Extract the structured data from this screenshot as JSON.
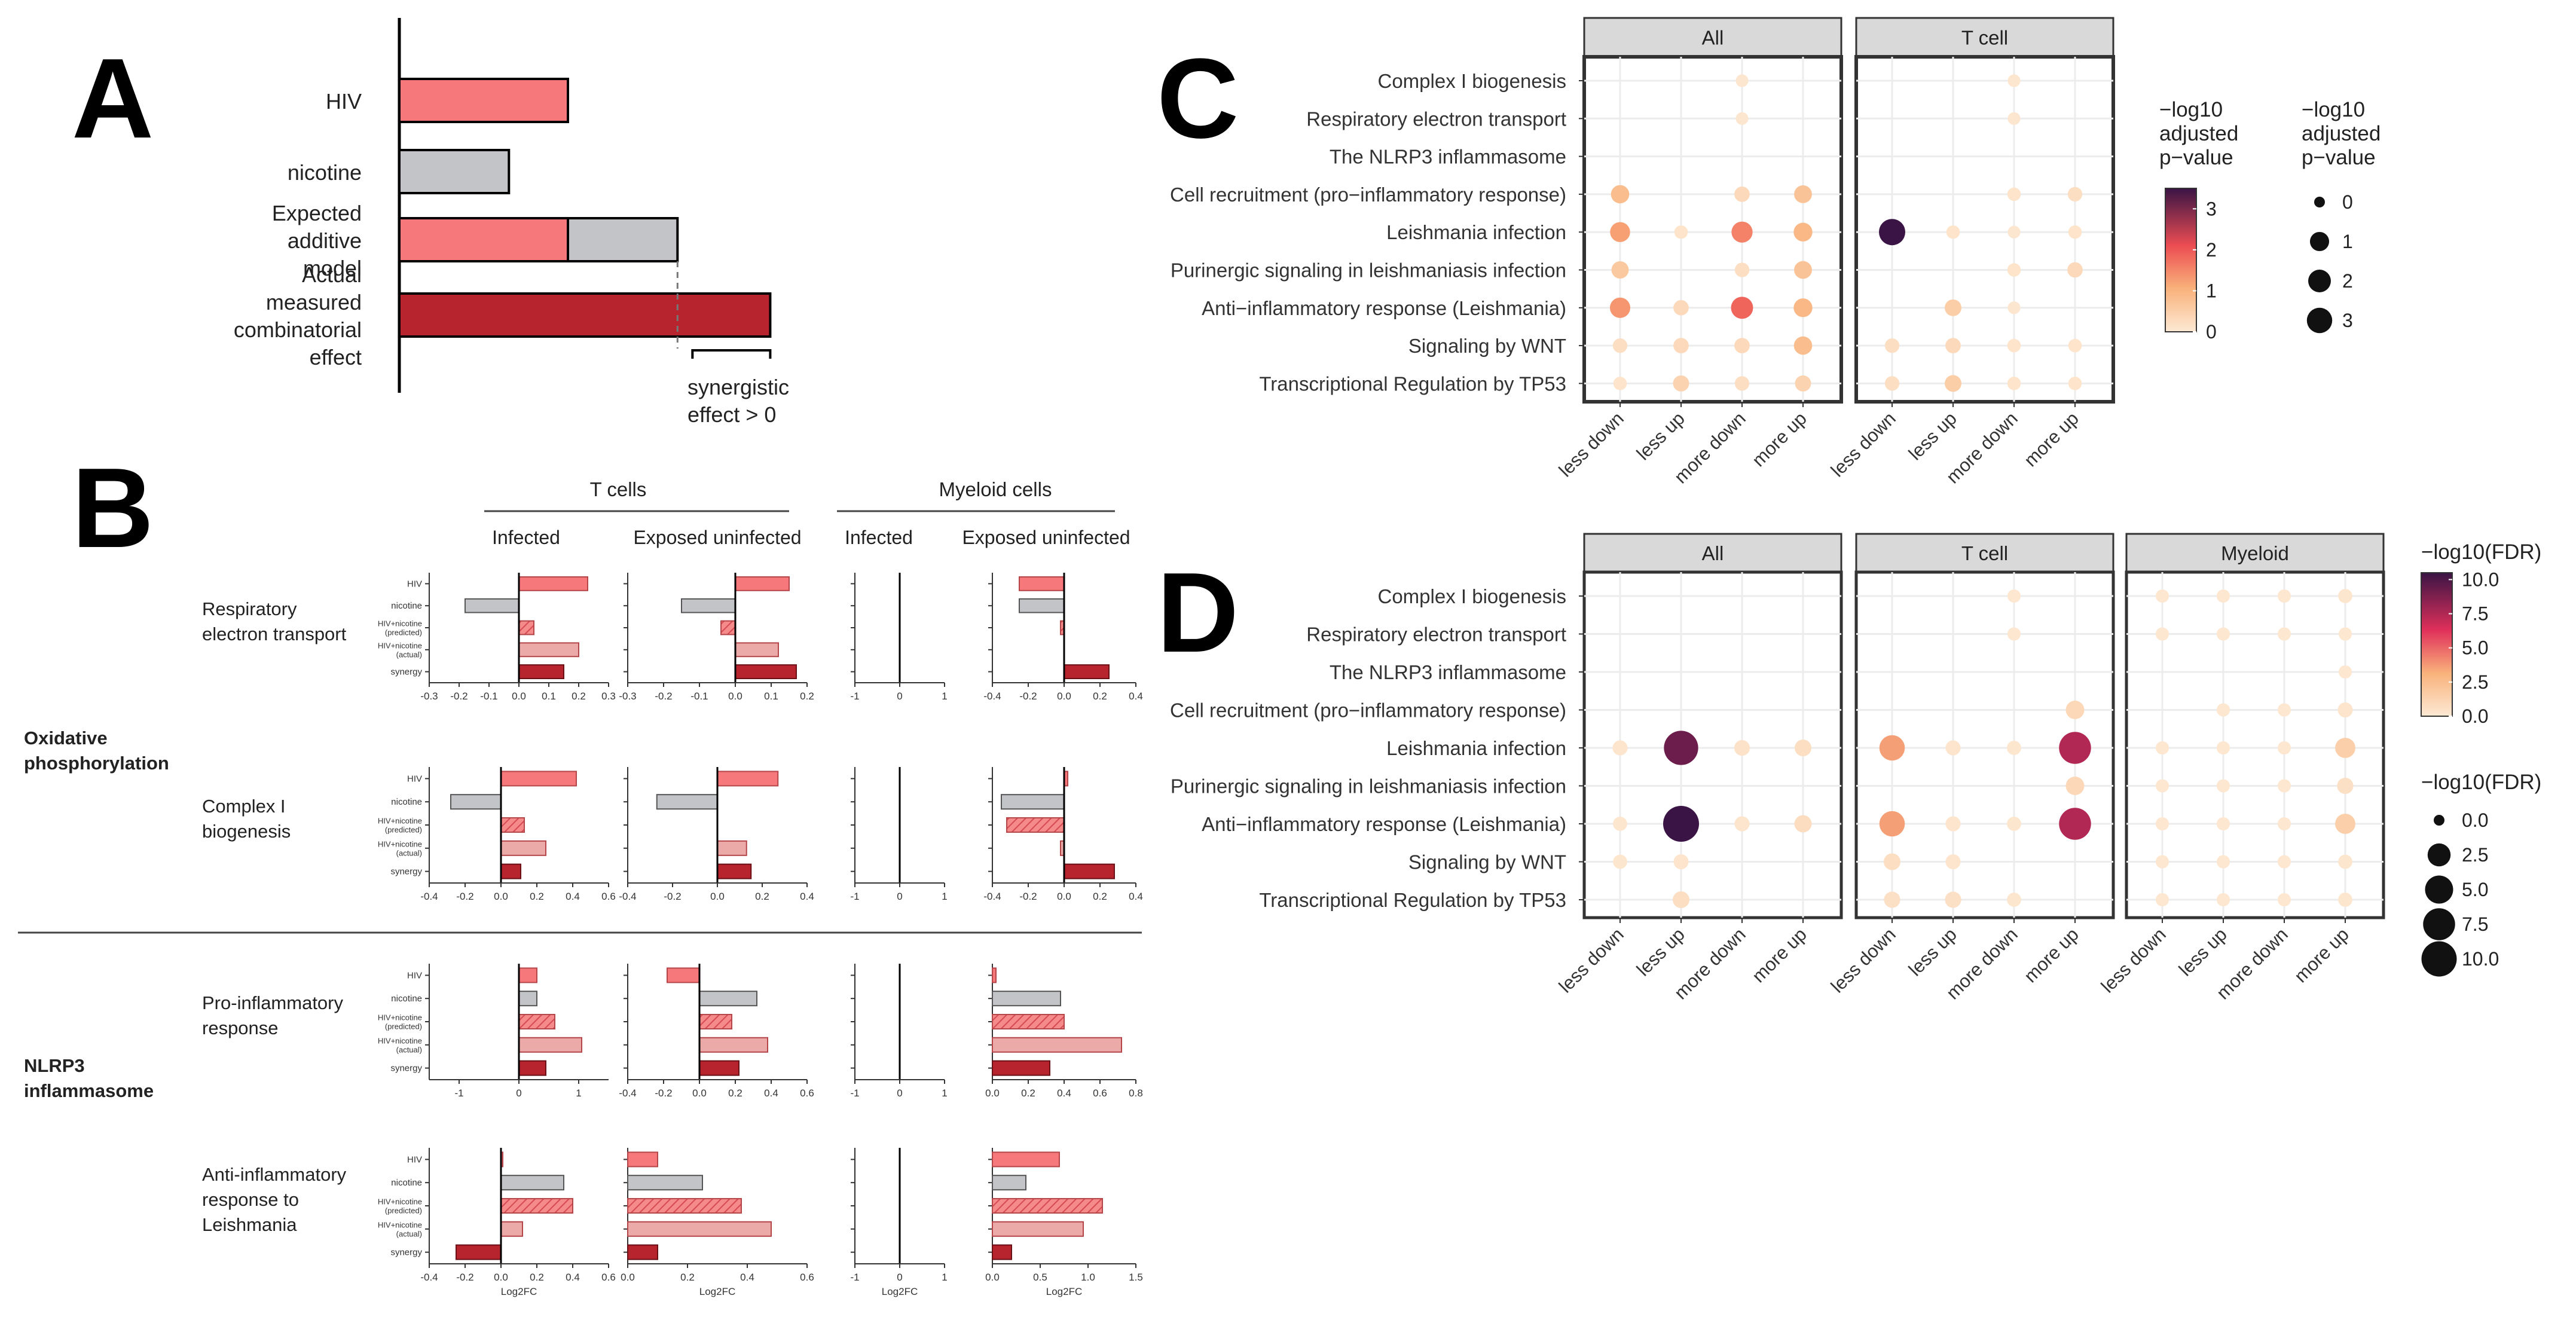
{
  "colors": {
    "hiv": "#f7787b",
    "nicotine": "#c3c4c8",
    "predicted": "#f48a89",
    "actual": "#ebaaa8",
    "synergy": "#b7242e",
    "panel_header": "#d9d9d9"
  },
  "chart_data": [
    {
      "panel": "A",
      "type": "bar",
      "categories": [
        "HIV",
        "nicotine",
        "Expected additive model",
        "Actual measured combinatorial effect"
      ],
      "category_lines": [
        [
          "HIV"
        ],
        [
          "nicotine"
        ],
        [
          "Expected",
          "additive",
          "model"
        ],
        [
          "Actual",
          "measured",
          "combinatorial",
          "effect"
        ]
      ],
      "series": [
        {
          "name": "HIV",
          "values": [
            1.0,
            0,
            1.0,
            0
          ]
        },
        {
          "name": "nicotine",
          "values": [
            0,
            0.65,
            0.65,
            0
          ]
        },
        {
          "name": "combinatorial",
          "values": [
            0,
            0,
            0,
            2.2
          ]
        }
      ],
      "annotation": [
        "synergistic",
        "effect > 0"
      ],
      "xlabel": "",
      "ylabel": ""
    },
    {
      "panel": "B",
      "type": "bar",
      "bar_names": [
        "HIV",
        "nicotine",
        "HIV+nicotine (predicted)",
        "HIV+nicotine (actual)",
        "synergy"
      ],
      "row_groups": [
        {
          "name_lines": [
            "Oxidative",
            "phosphorylation"
          ]
        },
        {
          "name_lines": [
            "NLRP3",
            "inflammasome"
          ]
        }
      ],
      "column_groups": [
        {
          "name": "T cells",
          "columns": [
            "Infected",
            "Exposed uninfected"
          ]
        },
        {
          "name": "Myeloid cells",
          "columns": [
            "Infected",
            "Exposed uninfected"
          ]
        }
      ],
      "xlabel": "Log2FC",
      "rows": [
        {
          "label_lines": [
            "Respiratory",
            "electron transport"
          ],
          "panels": [
            {
              "values": [
                0.23,
                -0.18,
                0.05,
                0.2,
                0.15
              ],
              "xlim": [
                -0.3,
                0.3
              ],
              "ticks": [
                "-0.3",
                "-0.2",
                "-0.1",
                "0.0",
                "0.1",
                "0.2",
                "0.3"
              ],
              "tick_values": [
                -0.3,
                -0.2,
                -0.1,
                0.0,
                0.1,
                0.2,
                0.3
              ]
            },
            {
              "values": [
                0.15,
                -0.15,
                -0.04,
                0.12,
                0.17
              ],
              "xlim": [
                -0.3,
                0.2
              ],
              "ticks": [
                "-0.3",
                "-0.2",
                "-0.1",
                "0.0",
                "0.1",
                "0.2"
              ],
              "tick_values": [
                -0.3,
                -0.2,
                -0.1,
                0.0,
                0.1,
                0.2
              ]
            },
            {
              "values": [
                0,
                0,
                0,
                0,
                0
              ],
              "xlim": [
                -1,
                1
              ],
              "ticks": [
                "-1",
                "0",
                "1"
              ],
              "tick_values": [
                -1,
                0,
                1
              ]
            },
            {
              "values": [
                -0.25,
                -0.25,
                -0.02,
                0.0,
                0.25
              ],
              "xlim": [
                -0.4,
                0.4
              ],
              "ticks": [
                "-0.4",
                "-0.2",
                "0.0",
                "0.2",
                "0.4"
              ],
              "tick_values": [
                -0.4,
                -0.2,
                0.0,
                0.2,
                0.4
              ]
            }
          ]
        },
        {
          "label_lines": [
            "Complex I",
            "biogenesis"
          ],
          "panels": [
            {
              "values": [
                0.42,
                -0.28,
                0.13,
                0.25,
                0.11
              ],
              "xlim": [
                -0.4,
                0.6
              ],
              "ticks": [
                "-0.4",
                "-0.2",
                "0.0",
                "0.2",
                "0.4",
                "0.6"
              ],
              "tick_values": [
                -0.4,
                -0.2,
                0.0,
                0.2,
                0.4,
                0.6
              ]
            },
            {
              "values": [
                0.27,
                -0.27,
                0.0,
                0.13,
                0.15
              ],
              "xlim": [
                -0.4,
                0.4
              ],
              "ticks": [
                "-0.4",
                "-0.2",
                "0.0",
                "0.2",
                "0.4"
              ],
              "tick_values": [
                -0.4,
                -0.2,
                0.0,
                0.2,
                0.4
              ]
            },
            {
              "values": [
                0,
                0,
                0,
                0,
                0
              ],
              "xlim": [
                -1,
                1
              ],
              "ticks": [
                "-1",
                "0",
                "1"
              ],
              "tick_values": [
                -1,
                0,
                1
              ]
            },
            {
              "values": [
                0.02,
                -0.35,
                -0.32,
                -0.02,
                0.28
              ],
              "xlim": [
                -0.4,
                0.4
              ],
              "ticks": [
                "-0.4",
                "-0.2",
                "0.0",
                "0.2",
                "0.4"
              ],
              "tick_values": [
                -0.4,
                -0.2,
                0.0,
                0.2,
                0.4
              ]
            }
          ]
        },
        {
          "label_lines": [
            "Pro-inflammatory",
            "response"
          ],
          "panels": [
            {
              "values": [
                0.3,
                0.3,
                0.6,
                1.05,
                0.45
              ],
              "xlim": [
                -1.5,
                1.5
              ],
              "ticks": [
                "-1",
                "0",
                "1"
              ],
              "tick_values": [
                -1,
                0,
                1
              ]
            },
            {
              "values": [
                -0.18,
                0.32,
                0.18,
                0.38,
                0.22
              ],
              "xlim": [
                -0.4,
                0.6
              ],
              "ticks": [
                "-0.4",
                "-0.2",
                "0.0",
                "0.2",
                "0.4",
                "0.6"
              ],
              "tick_values": [
                -0.4,
                -0.2,
                0.0,
                0.2,
                0.4,
                0.6
              ]
            },
            {
              "values": [
                0,
                0,
                0,
                0,
                0
              ],
              "xlim": [
                -1,
                1
              ],
              "ticks": [
                "-1",
                "0",
                "1"
              ],
              "tick_values": [
                -1,
                0,
                1
              ]
            },
            {
              "values": [
                0.02,
                0.38,
                0.4,
                0.72,
                0.32
              ],
              "xlim": [
                0,
                0.8
              ],
              "ticks": [
                "0.0",
                "0.2",
                "0.4",
                "0.6",
                "0.8"
              ],
              "tick_values": [
                0,
                0.2,
                0.4,
                0.6,
                0.8
              ]
            }
          ]
        },
        {
          "label_lines": [
            "Anti-inflammatory",
            "response to",
            "Leishmania"
          ],
          "panels": [
            {
              "values": [
                0.01,
                0.35,
                0.4,
                0.12,
                -0.25
              ],
              "xlim": [
                -0.4,
                0.6
              ],
              "ticks": [
                "-0.4",
                "-0.2",
                "0.0",
                "0.2",
                "0.4",
                "0.6"
              ],
              "tick_values": [
                -0.4,
                -0.2,
                0.0,
                0.2,
                0.4,
                0.6
              ]
            },
            {
              "values": [
                0.1,
                0.25,
                0.38,
                0.48,
                0.1
              ],
              "xlim": [
                0,
                0.6
              ],
              "ticks": [
                "0.0",
                "0.2",
                "0.4",
                "0.6"
              ],
              "tick_values": [
                0,
                0.2,
                0.4,
                0.6
              ]
            },
            {
              "values": [
                0,
                0,
                0,
                0,
                0
              ],
              "xlim": [
                -1,
                1
              ],
              "ticks": [
                "-1",
                "0",
                "1"
              ],
              "tick_values": [
                -1,
                0,
                1
              ]
            },
            {
              "values": [
                0.7,
                0.35,
                1.15,
                0.95,
                0.2
              ],
              "xlim": [
                0,
                1.5
              ],
              "ticks": [
                "0.0",
                "0.5",
                "1.0",
                "1.5"
              ],
              "tick_values": [
                0,
                0.5,
                1.0,
                1.5
              ]
            }
          ]
        }
      ]
    },
    {
      "panel": "C",
      "type": "scatter",
      "pathways": [
        "Complex I biogenesis",
        "Respiratory electron transport",
        "The NLRP3 inflammasome",
        "Cell recruitment (pro−inflammatory response)",
        "Leishmania infection",
        "Purinergic signaling in leishmaniasis infection",
        "Anti−inflammatory response (Leishmania)",
        "Signaling by WNT",
        "Transcriptional Regulation by TP53"
      ],
      "categories": [
        "less down",
        "less up",
        "more down",
        "more up"
      ],
      "facets": [
        "All",
        "T cell"
      ],
      "points": [
        [
          [
            null,
            null,
            0.05,
            null
          ],
          [
            null,
            null,
            0.05,
            null
          ],
          [
            null,
            null,
            null,
            null
          ],
          [
            0.8,
            null,
            0.3,
            0.7
          ],
          [
            1.2,
            0.1,
            1.5,
            0.9
          ],
          [
            0.6,
            null,
            0.2,
            0.7
          ],
          [
            1.3,
            0.3,
            1.8,
            0.9
          ],
          [
            0.2,
            0.3,
            0.3,
            0.8
          ],
          [
            0.1,
            0.4,
            0.2,
            0.4
          ]
        ],
        [
          [
            null,
            null,
            0.05,
            null
          ],
          [
            null,
            null,
            0.05,
            null
          ],
          [
            null,
            null,
            null,
            null
          ],
          [
            null,
            null,
            0.1,
            0.2
          ],
          [
            3.4,
            0.1,
            0.05,
            0.1
          ],
          [
            null,
            null,
            0.1,
            0.3
          ],
          [
            null,
            0.5,
            0.05,
            null
          ],
          [
            0.2,
            0.3,
            0.1,
            0.1
          ],
          [
            0.2,
            0.5,
            0.1,
            0.1
          ]
        ]
      ],
      "color_legend_title": [
        "−log10",
        "adjusted",
        "p−value"
      ],
      "color_ticks": [
        0,
        1,
        2,
        3
      ],
      "color_max": 3.4,
      "size_legend_title": [
        "−log10",
        "adjusted",
        "p−value"
      ],
      "size_ticks": [
        0,
        1,
        2,
        3
      ]
    },
    {
      "panel": "D",
      "type": "scatter",
      "pathways": [
        "Complex I biogenesis",
        "Respiratory electron transport",
        "The NLRP3 inflammasome",
        "Cell recruitment (pro−inflammatory response)",
        "Leishmania infection",
        "Purinergic signaling in leishmaniasis infection",
        "Anti−inflammatory response (Leishmania)",
        "Signaling by WNT",
        "Transcriptional Regulation by TP53"
      ],
      "categories": [
        "less down",
        "less up",
        "more down",
        "more up"
      ],
      "facets": [
        "All",
        "T cell",
        "Myeloid"
      ],
      "points": [
        [
          [
            null,
            null,
            null,
            null
          ],
          [
            null,
            null,
            null,
            null
          ],
          [
            null,
            null,
            null,
            null
          ],
          [
            null,
            null,
            null,
            null
          ],
          [
            0.3,
            9.2,
            0.4,
            0.6
          ],
          [
            null,
            null,
            null,
            null
          ],
          [
            0.2,
            10.5,
            0.3,
            0.7
          ],
          [
            0.2,
            0.3,
            null,
            null
          ],
          [
            null,
            0.6,
            null,
            null
          ]
        ],
        [
          [
            null,
            null,
            0.1,
            null
          ],
          [
            null,
            null,
            0.1,
            null
          ],
          [
            null,
            null,
            null,
            null
          ],
          [
            null,
            null,
            null,
            1.0
          ],
          [
            3.6,
            0.3,
            0.2,
            7.5
          ],
          [
            null,
            null,
            null,
            1.0
          ],
          [
            3.6,
            0.3,
            0.2,
            7.5
          ],
          [
            0.6,
            0.3,
            null,
            null
          ],
          [
            0.5,
            0.5,
            0.2,
            null
          ]
        ],
        [
          [
            0.1,
            0.1,
            0.1,
            0.2
          ],
          [
            0.1,
            0.1,
            0.1,
            0.1
          ],
          [
            null,
            null,
            null,
            0.1
          ],
          [
            null,
            0.1,
            0.1,
            0.3
          ],
          [
            0.1,
            0.1,
            0.1,
            1.5
          ],
          [
            0.1,
            0.1,
            0.1,
            0.5
          ],
          [
            0.1,
            0.1,
            0.1,
            1.5
          ],
          [
            0.1,
            0.1,
            0.1,
            0.2
          ],
          [
            0.1,
            0.1,
            0.1,
            0.2
          ]
        ]
      ],
      "color_legend_title": [
        "−log10(FDR)"
      ],
      "color_ticks": [
        "10.0",
        "7.5",
        "5.0",
        "2.5",
        "0.0"
      ],
      "color_tick_values": [
        10,
        7.5,
        5,
        2.5,
        0
      ],
      "color_max": 10.5,
      "size_legend_title": [
        "−log10(FDR)"
      ],
      "size_ticks": [
        "0.0",
        "2.5",
        "5.0",
        "7.5",
        "10.0"
      ],
      "size_tick_values": [
        0,
        2.5,
        5,
        7.5,
        10
      ]
    }
  ],
  "panel_letters": [
    "A",
    "B",
    "C",
    "D"
  ]
}
